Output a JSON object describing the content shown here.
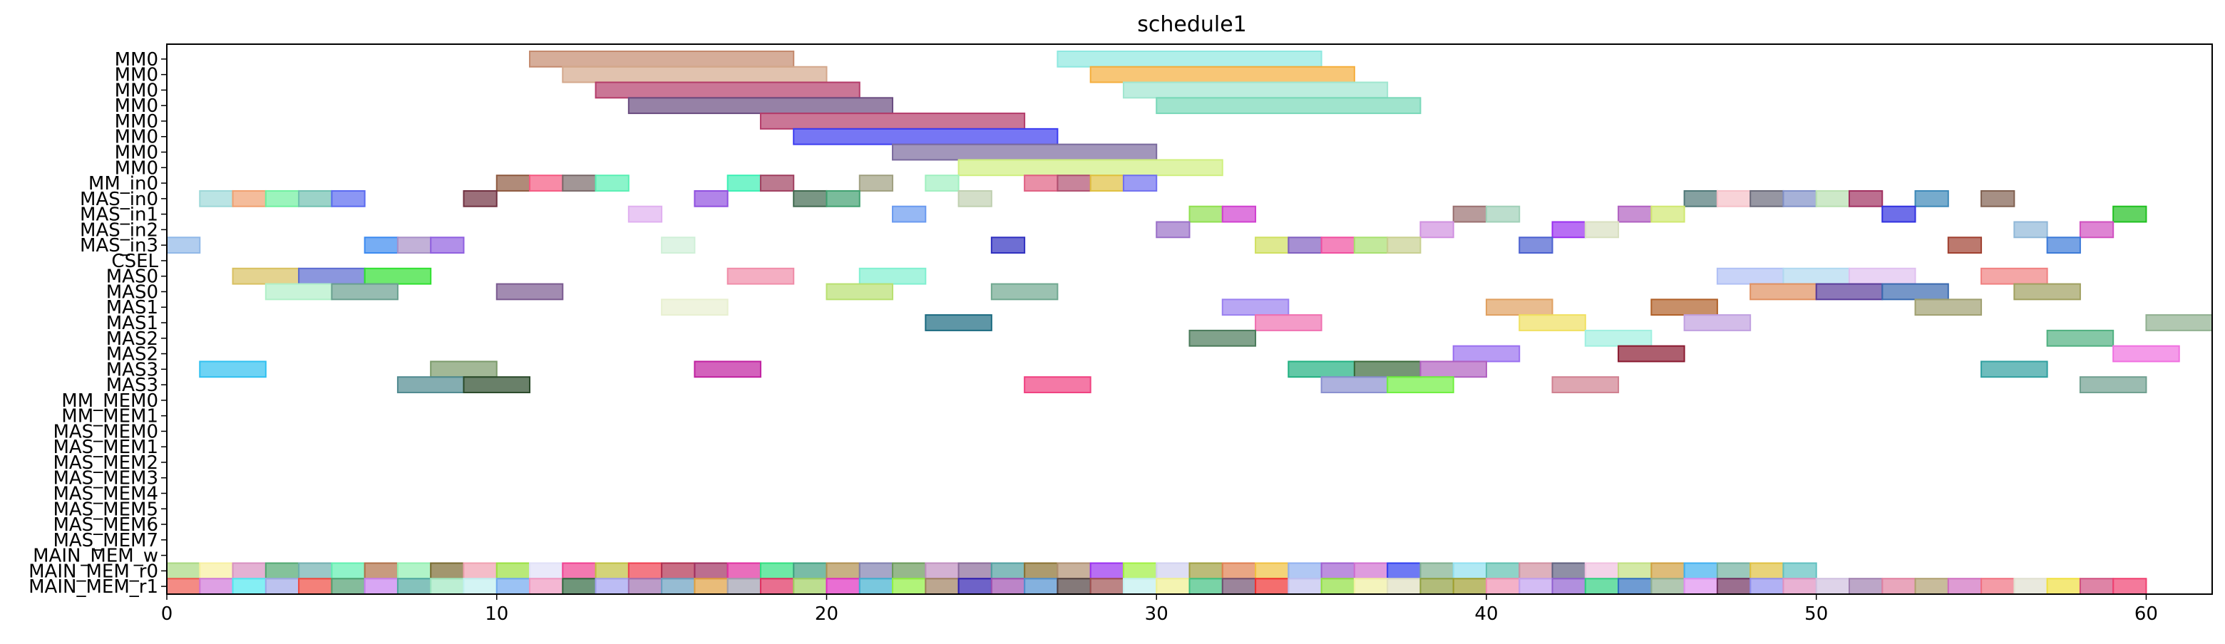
{
  "chart_data": {
    "type": "gantt",
    "title": "schedule1",
    "xlabel": "",
    "ylabel": "",
    "xlim": [
      0,
      62
    ],
    "x_ticks": [
      0,
      10,
      20,
      30,
      40,
      50,
      60
    ],
    "grid": false,
    "rows": [
      "MM0",
      "MM0",
      "MM0",
      "MM0",
      "MM0",
      "MM0",
      "MM0",
      "MM0",
      "MM_in0",
      "MAS_in0",
      "MAS_in1",
      "MAS_in2",
      "MAS_in3",
      "CSEL",
      "MAS0",
      "MAS0",
      "MAS1",
      "MAS1",
      "MAS2",
      "MAS2",
      "MAS3",
      "MAS3",
      "MM_MEM0",
      "MM_MEM1",
      "MAS_MEM0",
      "MAS_MEM1",
      "MAS_MEM2",
      "MAS_MEM3",
      "MAS_MEM4",
      "MAS_MEM5",
      "MAS_MEM6",
      "MAS_MEM7",
      "MAIN_MEM_w",
      "MAIN_MEM_r0",
      "MAIN_MEM_r1"
    ],
    "tasks": [
      {
        "row": 0,
        "start": 11,
        "end": 19,
        "color": "#c48a6e"
      },
      {
        "row": 0,
        "start": 27,
        "end": 35,
        "color": "#8ee8e0"
      },
      {
        "row": 1,
        "start": 12,
        "end": 20,
        "color": "#d4a88c"
      },
      {
        "row": 1,
        "start": 28,
        "end": 36,
        "color": "#f5ae3c"
      },
      {
        "row": 2,
        "start": 13,
        "end": 21,
        "color": "#b43c6a"
      },
      {
        "row": 2,
        "start": 29,
        "end": 37,
        "color": "#a0e6d0"
      },
      {
        "row": 3,
        "start": 14,
        "end": 22,
        "color": "#6a4c80"
      },
      {
        "row": 3,
        "start": 30,
        "end": 38,
        "color": "#78d8b8"
      },
      {
        "row": 4,
        "start": 18,
        "end": 26,
        "color": "#b43c6a"
      },
      {
        "row": 5,
        "start": 19,
        "end": 27,
        "color": "#3c3cf0"
      },
      {
        "row": 6,
        "start": 22,
        "end": 30,
        "color": "#7a6a9e"
      },
      {
        "row": 7,
        "start": 24,
        "end": 32,
        "color": "#d0f080"
      },
      {
        "row": 8,
        "start": 10,
        "end": 11,
        "color": "#8e5a40"
      },
      {
        "row": 8,
        "start": 11,
        "end": 12,
        "color": "#f55a82"
      },
      {
        "row": 8,
        "start": 12,
        "end": 13,
        "color": "#7a6a6a"
      },
      {
        "row": 8,
        "start": 13,
        "end": 14,
        "color": "#5af0b4"
      },
      {
        "row": 8,
        "start": 17,
        "end": 18,
        "color": "#3cf0b4"
      },
      {
        "row": 8,
        "start": 18,
        "end": 19,
        "color": "#a04060"
      },
      {
        "row": 8,
        "start": 21,
        "end": 22,
        "color": "#a0a080"
      },
      {
        "row": 8,
        "start": 23,
        "end": 24,
        "color": "#a0f0c0"
      },
      {
        "row": 8,
        "start": 26,
        "end": 27,
        "color": "#e06082"
      },
      {
        "row": 8,
        "start": 27,
        "end": 28,
        "color": "#b05070"
      },
      {
        "row": 8,
        "start": 28,
        "end": 29,
        "color": "#e0c040"
      },
      {
        "row": 8,
        "start": 29,
        "end": 30,
        "color": "#7070f0"
      },
      {
        "row": 9,
        "start": 1,
        "end": 2,
        "color": "#9cd8d8"
      },
      {
        "row": 9,
        "start": 2,
        "end": 3,
        "color": "#f0a070"
      },
      {
        "row": 9,
        "start": 3,
        "end": 4,
        "color": "#70f0a0"
      },
      {
        "row": 9,
        "start": 4,
        "end": 5,
        "color": "#70c0b0"
      },
      {
        "row": 9,
        "start": 5,
        "end": 6,
        "color": "#5a6af0"
      },
      {
        "row": 9,
        "start": 9,
        "end": 10,
        "color": "#703040"
      },
      {
        "row": 9,
        "start": 16,
        "end": 17,
        "color": "#9050e0"
      },
      {
        "row": 9,
        "start": 19,
        "end": 20,
        "color": "#406a50"
      },
      {
        "row": 9,
        "start": 20,
        "end": 21,
        "color": "#40a070"
      },
      {
        "row": 9,
        "start": 24,
        "end": 25,
        "color": "#c0d0b0"
      },
      {
        "row": 9,
        "start": 46,
        "end": 47,
        "color": "#507878"
      },
      {
        "row": 9,
        "start": 47,
        "end": 48,
        "color": "#f5c0c8"
      },
      {
        "row": 9,
        "start": 48,
        "end": 49,
        "color": "#6a6a7a"
      },
      {
        "row": 9,
        "start": 49,
        "end": 50,
        "color": "#8090c8"
      },
      {
        "row": 9,
        "start": 50,
        "end": 51,
        "color": "#b8e0b0"
      },
      {
        "row": 9,
        "start": 51,
        "end": 52,
        "color": "#a03060"
      },
      {
        "row": 9,
        "start": 53,
        "end": 54,
        "color": "#3c88b8"
      },
      {
        "row": 9,
        "start": 55,
        "end": 56,
        "color": "#806050"
      },
      {
        "row": 10,
        "start": 14,
        "end": 15,
        "color": "#e0b0f0"
      },
      {
        "row": 10,
        "start": 22,
        "end": 23,
        "color": "#6a9af0"
      },
      {
        "row": 10,
        "start": 31,
        "end": 32,
        "color": "#90e050"
      },
      {
        "row": 10,
        "start": 32,
        "end": 33,
        "color": "#d040d0"
      },
      {
        "row": 10,
        "start": 39,
        "end": 40,
        "color": "#9a7070"
      },
      {
        "row": 10,
        "start": 40,
        "end": 41,
        "color": "#a0d0b8"
      },
      {
        "row": 10,
        "start": 44,
        "end": 45,
        "color": "#b060c0"
      },
      {
        "row": 10,
        "start": 45,
        "end": 46,
        "color": "#d0e870"
      },
      {
        "row": 10,
        "start": 52,
        "end": 53,
        "color": "#3030e0"
      },
      {
        "row": 10,
        "start": 59,
        "end": 60,
        "color": "#20c020"
      },
      {
        "row": 11,
        "start": 30,
        "end": 31,
        "color": "#9a70c8"
      },
      {
        "row": 11,
        "start": 38,
        "end": 39,
        "color": "#d090e0"
      },
      {
        "row": 11,
        "start": 42,
        "end": 43,
        "color": "#9a30f0"
      },
      {
        "row": 11,
        "start": 43,
        "end": 44,
        "color": "#d8e0c0"
      },
      {
        "row": 11,
        "start": 56,
        "end": 57,
        "color": "#90b8d8"
      },
      {
        "row": 11,
        "start": 58,
        "end": 59,
        "color": "#d050c0"
      },
      {
        "row": 12,
        "start": 0,
        "end": 1,
        "color": "#90b8e8"
      },
      {
        "row": 12,
        "start": 6,
        "end": 7,
        "color": "#3c8af0"
      },
      {
        "row": 12,
        "start": 7,
        "end": 8,
        "color": "#a890c8"
      },
      {
        "row": 12,
        "start": 8,
        "end": 9,
        "color": "#9060e0"
      },
      {
        "row": 12,
        "start": 15,
        "end": 16,
        "color": "#d0f0d8"
      },
      {
        "row": 12,
        "start": 25,
        "end": 26,
        "color": "#3030c0"
      },
      {
        "row": 12,
        "start": 33,
        "end": 34,
        "color": "#d0e060"
      },
      {
        "row": 12,
        "start": 34,
        "end": 35,
        "color": "#8060c0"
      },
      {
        "row": 12,
        "start": 35,
        "end": 36,
        "color": "#f050a0"
      },
      {
        "row": 12,
        "start": 36,
        "end": 37,
        "color": "#a8e070"
      },
      {
        "row": 12,
        "start": 37,
        "end": 38,
        "color": "#c8d090"
      },
      {
        "row": 12,
        "start": 41,
        "end": 42,
        "color": "#4a60d0"
      },
      {
        "row": 12,
        "start": 54,
        "end": 55,
        "color": "#a04030"
      },
      {
        "row": 12,
        "start": 57,
        "end": 58,
        "color": "#3c7ad8"
      },
      {
        "row": 14,
        "start": 2,
        "end": 4,
        "color": "#d8c060"
      },
      {
        "row": 14,
        "start": 4,
        "end": 6,
        "color": "#5a6ad0"
      },
      {
        "row": 14,
        "start": 6,
        "end": 8,
        "color": "#30e030"
      },
      {
        "row": 14,
        "start": 17,
        "end": 19,
        "color": "#f08ca8"
      },
      {
        "row": 14,
        "start": 21,
        "end": 23,
        "color": "#80f0d0"
      },
      {
        "row": 14,
        "start": 47,
        "end": 49,
        "color": "#b0c0f5"
      },
      {
        "row": 14,
        "start": 49,
        "end": 51,
        "color": "#b0d8f0"
      },
      {
        "row": 14,
        "start": 51,
        "end": 53,
        "color": "#e0c0f0"
      },
      {
        "row": 14,
        "start": 55,
        "end": 57,
        "color": "#f08080"
      },
      {
        "row": 15,
        "start": 3,
        "end": 5,
        "color": "#b0f0c8"
      },
      {
        "row": 15,
        "start": 5,
        "end": 7,
        "color": "#6aa090"
      },
      {
        "row": 15,
        "start": 10,
        "end": 12,
        "color": "#7a5a90"
      },
      {
        "row": 15,
        "start": 20,
        "end": 22,
        "color": "#b8e070"
      },
      {
        "row": 15,
        "start": 25,
        "end": 27,
        "color": "#70a890"
      },
      {
        "row": 15,
        "start": 48,
        "end": 50,
        "color": "#e09060"
      },
      {
        "row": 15,
        "start": 50,
        "end": 52,
        "color": "#5a3c9a"
      },
      {
        "row": 15,
        "start": 52,
        "end": 54,
        "color": "#3a6ab0"
      },
      {
        "row": 15,
        "start": 56,
        "end": 58,
        "color": "#a0a060"
      },
      {
        "row": 16,
        "start": 15,
        "end": 17,
        "color": "#e8f0d0"
      },
      {
        "row": 16,
        "start": 32,
        "end": 34,
        "color": "#9a80f0"
      },
      {
        "row": 16,
        "start": 40,
        "end": 42,
        "color": "#e0a060"
      },
      {
        "row": 16,
        "start": 45,
        "end": 47,
        "color": "#b06028"
      },
      {
        "row": 16,
        "start": 53,
        "end": 55,
        "color": "#a0a070"
      },
      {
        "row": 17,
        "start": 23,
        "end": 25,
        "color": "#1a6a80"
      },
      {
        "row": 17,
        "start": 33,
        "end": 35,
        "color": "#f070b0"
      },
      {
        "row": 17,
        "start": 41,
        "end": 43,
        "color": "#f0e060"
      },
      {
        "row": 17,
        "start": 46,
        "end": 48,
        "color": "#c0a0e0"
      },
      {
        "row": 17,
        "start": 60,
        "end": 62,
        "color": "#90b090"
      },
      {
        "row": 18,
        "start": 31,
        "end": 33,
        "color": "#4a7a5a"
      },
      {
        "row": 18,
        "start": 43,
        "end": 45,
        "color": "#a0f0e0"
      },
      {
        "row": 18,
        "start": 57,
        "end": 59,
        "color": "#50b080"
      },
      {
        "row": 19,
        "start": 39,
        "end": 41,
        "color": "#9a70f0"
      },
      {
        "row": 19,
        "start": 44,
        "end": 46,
        "color": "#8a1a30"
      },
      {
        "row": 19,
        "start": 59,
        "end": 61,
        "color": "#f070e0"
      },
      {
        "row": 20,
        "start": 1,
        "end": 3,
        "color": "#30c0f0"
      },
      {
        "row": 20,
        "start": 8,
        "end": 10,
        "color": "#7a9a6a"
      },
      {
        "row": 20,
        "start": 16,
        "end": 18,
        "color": "#c020a0"
      },
      {
        "row": 20,
        "start": 34,
        "end": 36,
        "color": "#20b080"
      },
      {
        "row": 20,
        "start": 36,
        "end": 38,
        "color": "#3a6a3a"
      },
      {
        "row": 20,
        "start": 38,
        "end": 40,
        "color": "#b060c0"
      },
      {
        "row": 20,
        "start": 55,
        "end": 57,
        "color": "#30a0a0"
      },
      {
        "row": 21,
        "start": 7,
        "end": 9,
        "color": "#508a90"
      },
      {
        "row": 21,
        "start": 9,
        "end": 11,
        "color": "#2a4a2a"
      },
      {
        "row": 21,
        "start": 26,
        "end": 28,
        "color": "#f04080"
      },
      {
        "row": 21,
        "start": 35,
        "end": 37,
        "color": "#8a90d0"
      },
      {
        "row": 21,
        "start": 37,
        "end": 39,
        "color": "#70f040"
      },
      {
        "row": 21,
        "start": 42,
        "end": 44,
        "color": "#d08090"
      },
      {
        "row": 21,
        "start": 58,
        "end": 60,
        "color": "#70a090"
      }
    ],
    "main_mem_r0_colors": [
      "#a8d880",
      "#f8f0a0",
      "#d890c0",
      "#50a870",
      "#70b0b0",
      "#60f0b0",
      "#b07048",
      "#90f0b0",
      "#7a6a30",
      "#f0a0b0",
      "#9ae040",
      "#e0e0f8",
      "#f04090",
      "#c0c040",
      "#f04050",
      "#b03050",
      "#a03060",
      "#e030a0",
      "#30e080",
      "#40a080",
      "#b09050",
      "#8080b0",
      "#6a9a5a",
      "#c090c0",
      "#8a6a9a",
      "#50a0a0",
      "#8a7030",
      "#b09070",
      "#9a30f0",
      "#a0f040",
      "#d0d0f0",
      "#a0a040",
      "#e08050",
      "#f0c040",
      "#90b0f0",
      "#a060d0",
      "#d070d0",
      "#3040f0",
      "#80b090",
      "#90e0f0",
      "#60c0b0",
      "#d090a0",
      "#606080",
      "#f0c0e0",
      "#c0e080",
      "#d0a040",
      "#40b0f0",
      "#70b0a0",
      "#e0c040",
      "#60c0c0"
    ],
    "main_mem_r1_colors": [
      "#f05a50",
      "#d078d8",
      "#50e8f0",
      "#a0a8e8",
      "#f04a40",
      "#50a070",
      "#c880f0",
      "#50a8a0",
      "#a0e8c0",
      "#c0f0f0",
      "#70a8f0",
      "#f098c0",
      "#306a40",
      "#a0a0f0",
      "#a070b0",
      "#6aa0c0",
      "#e0a040",
      "#a0a0b0",
      "#e03060",
      "#a0d060",
      "#e030c0",
      "#40b0d0",
      "#90f040",
      "#a08060",
      "#3020b0",
      "#a050b0",
      "#5090d0",
      "#504040",
      "#a05050",
      "#c0f0f0",
      "#f0f090",
      "#40c080",
      "#705070",
      "#f03030",
      "#c0c0f0",
      "#90e040",
      "#f0f0a0",
      "#e0e0c0",
      "#90a040",
      "#a0a030",
      "#f090b0",
      "#c0a0f0",
      "#9060d0",
      "#30d080",
      "#3070c0",
      "#90b090",
      "#e090f0",
      "#703060",
      "#9090f0",
      "#e090c0",
      "#d0c0e0",
      "#a080b0",
      "#e080a0",
      "#b0a070",
      "#d070c0",
      "#f07080",
      "#e0e0d0",
      "#f0e040",
      "#d05080",
      "#f04070"
    ]
  }
}
